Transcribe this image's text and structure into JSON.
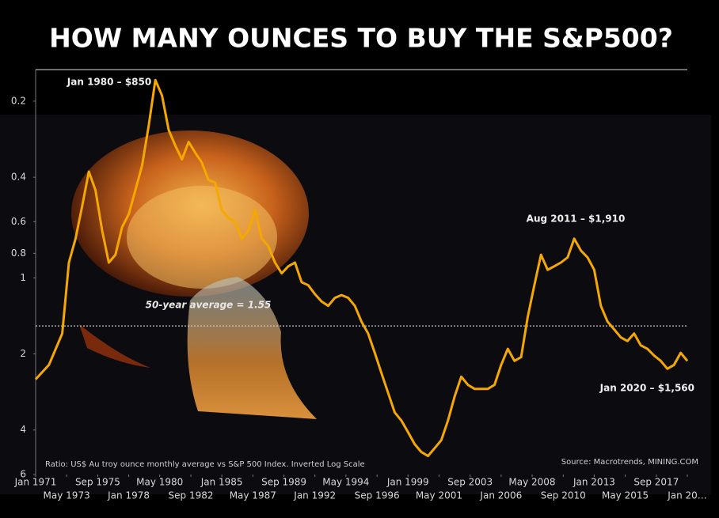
{
  "chart_data": {
    "type": "line",
    "title": "HOW MANY OUNCES TO BUY THE S&P500?",
    "y_scale": "log",
    "y_inverted": true,
    "color": "#f5a800",
    "xlim": [
      1971,
      2020
    ],
    "ylim": [
      0.15,
      6
    ],
    "yticks": [
      0.2,
      0.4,
      0.6,
      0.8,
      1,
      2,
      4,
      6
    ],
    "xticks": [
      {
        "value": 1971,
        "label": "Jan 1971"
      },
      {
        "value": 1973.33,
        "label": "May 1973"
      },
      {
        "value": 1975.67,
        "label": "Sep 1975"
      },
      {
        "value": 1978,
        "label": "Jan 1978"
      },
      {
        "value": 1980.33,
        "label": "May 1980"
      },
      {
        "value": 1982.67,
        "label": "Sep 1982"
      },
      {
        "value": 1985,
        "label": "Jan 1985"
      },
      {
        "value": 1987.33,
        "label": "May 1987"
      },
      {
        "value": 1989.67,
        "label": "Sep 1989"
      },
      {
        "value": 1992,
        "label": "Jan 1992"
      },
      {
        "value": 1994.33,
        "label": "May 1994"
      },
      {
        "value": 1996.67,
        "label": "Sep 1996"
      },
      {
        "value": 1999,
        "label": "Jan 1999"
      },
      {
        "value": 2001.33,
        "label": "May 2001"
      },
      {
        "value": 2003.67,
        "label": "Sep 2003"
      },
      {
        "value": 2006,
        "label": "Jan 2006"
      },
      {
        "value": 2008.33,
        "label": "May 2008"
      },
      {
        "value": 2010.67,
        "label": "Sep 2010"
      },
      {
        "value": 2013,
        "label": "Jan 2013"
      },
      {
        "value": 2015.33,
        "label": "May 2015"
      },
      {
        "value": 2017.67,
        "label": "Sep 2017"
      },
      {
        "value": 2020,
        "label": "Jan 20…"
      }
    ],
    "x": [
      1971,
      1972,
      1973,
      1973.5,
      1974,
      1974.5,
      1975,
      1975.5,
      1976,
      1976.5,
      1977,
      1977.5,
      1978,
      1978.5,
      1979,
      1979.5,
      1980,
      1980.5,
      1981,
      1981.5,
      1982,
      1982.5,
      1983,
      1983.5,
      1984,
      1984.5,
      1985,
      1985.5,
      1986,
      1986.5,
      1987,
      1987.5,
      1988,
      1988.5,
      1989,
      1989.5,
      1990,
      1990.5,
      1991,
      1991.5,
      1992,
      1992.5,
      1993,
      1993.5,
      1994,
      1994.5,
      1995,
      1995.5,
      1996,
      1996.5,
      1997,
      1997.5,
      1998,
      1998.5,
      1999,
      1999.5,
      2000,
      2000.5,
      2001,
      2001.5,
      2002,
      2002.5,
      2003,
      2003.5,
      2004,
      2004.5,
      2005,
      2005.5,
      2006,
      2006.5,
      2007,
      2007.5,
      2008,
      2008.5,
      2009,
      2009.5,
      2010,
      2010.5,
      2011,
      2011.5,
      2012,
      2012.5,
      2013,
      2013.5,
      2014,
      2014.5,
      2015,
      2015.5,
      2016,
      2016.5,
      2017,
      2017.5,
      2018,
      2018.5,
      2019,
      2019.5,
      2020
    ],
    "values": [
      2.52,
      2.21,
      1.66,
      0.87,
      0.7,
      0.52,
      0.38,
      0.45,
      0.65,
      0.87,
      0.81,
      0.63,
      0.56,
      0.45,
      0.36,
      0.25,
      0.165,
      0.19,
      0.26,
      0.3,
      0.34,
      0.29,
      0.32,
      0.35,
      0.41,
      0.42,
      0.54,
      0.58,
      0.6,
      0.7,
      0.65,
      0.54,
      0.7,
      0.75,
      0.87,
      0.96,
      0.9,
      0.87,
      1.04,
      1.07,
      1.16,
      1.24,
      1.29,
      1.2,
      1.17,
      1.2,
      1.29,
      1.49,
      1.66,
      1.98,
      2.38,
      2.85,
      3.41,
      3.67,
      4.08,
      4.55,
      4.89,
      5.07,
      4.72,
      4.39,
      3.67,
      2.95,
      2.46,
      2.65,
      2.75,
      2.75,
      2.75,
      2.65,
      2.21,
      1.91,
      2.13,
      2.06,
      1.43,
      1.07,
      0.81,
      0.93,
      0.9,
      0.87,
      0.83,
      0.7,
      0.78,
      0.83,
      0.93,
      1.29,
      1.49,
      1.6,
      1.72,
      1.78,
      1.66,
      1.85,
      1.91,
      2.03,
      2.13,
      2.29,
      2.21,
      1.98,
      2.13
    ],
    "average": {
      "value": 1.55,
      "label": "50-year average = 1.55"
    },
    "annotations": [
      "Jan 1980 – $850",
      "Aug 2011 – $1,910",
      "Jan 2020 – $1,560"
    ],
    "note": "Ratio: US$ Au troy ounce monthly average vs S&P 500 Index. Inverted Log Scale",
    "source": "Source: Macrotrends, MINING.COM"
  }
}
